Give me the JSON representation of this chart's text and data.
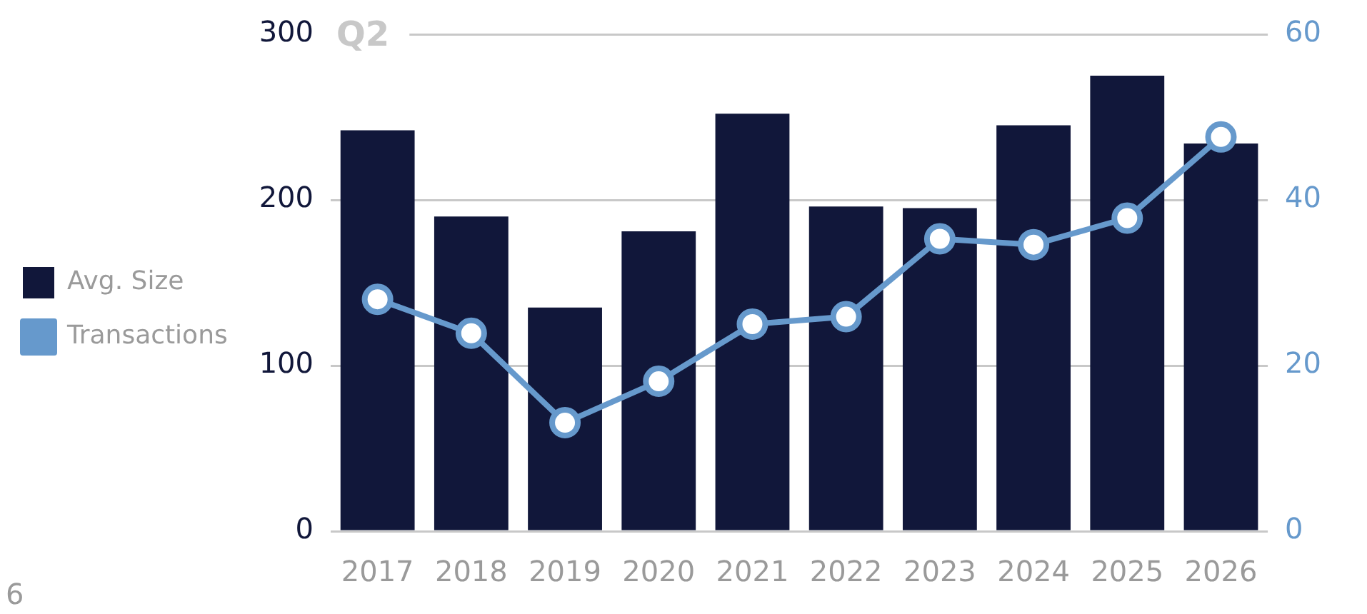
{
  "chart_data": {
    "type": "bar",
    "title": "Q2",
    "categories": [
      "2017",
      "2018",
      "2019",
      "2020",
      "2021",
      "2022",
      "2023",
      "2024",
      "2025",
      "2026"
    ],
    "series": [
      {
        "name": "Avg. Size",
        "color": "#11173a",
        "values": [
          242,
          190,
          135,
          181,
          252,
          196,
          195,
          245,
          275,
          234
        ]
      },
      {
        "name": "Transactions",
        "type": "line",
        "axis": "y2",
        "color": "#6699cc",
        "values": [
          28.0,
          23.9,
          13.1,
          18.1,
          25.0,
          25.9,
          35.3,
          34.6,
          37.8,
          47.6
        ]
      }
    ],
    "ylim": [
      0,
      300
    ],
    "yticks": [
      0,
      100,
      200,
      300
    ],
    "y2lim": [
      0,
      60
    ],
    "y2ticks": [
      0,
      20,
      40,
      60
    ],
    "grid": "y",
    "legend": "left",
    "marker": "circle",
    "line_style": "solid",
    "annotations": [
      "6"
    ]
  }
}
